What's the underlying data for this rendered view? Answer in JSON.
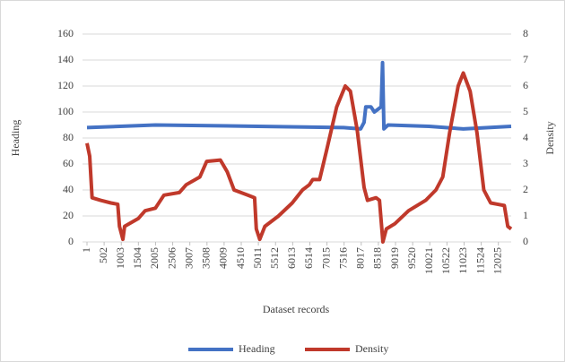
{
  "chart_data": {
    "type": "line",
    "xlabel": "Dataset records",
    "ylabel": "Heading",
    "y2label": "Density",
    "xlim": [
      1,
      12400
    ],
    "xticks": [
      1,
      502,
      1003,
      1504,
      2005,
      2506,
      3007,
      3508,
      4009,
      4510,
      5011,
      5512,
      6013,
      6514,
      7015,
      7516,
      8017,
      8518,
      9019,
      9520,
      10021,
      10522,
      11023,
      11524,
      12025
    ],
    "ylim": [
      0,
      160
    ],
    "yticks": [
      0,
      20,
      40,
      60,
      80,
      100,
      120,
      140,
      160
    ],
    "y2lim": [
      0,
      8
    ],
    "y2ticks": [
      0,
      1,
      2,
      3,
      4,
      5,
      6,
      7,
      8
    ],
    "grid": true,
    "legend": "bottom",
    "series": [
      {
        "name": "Heading",
        "color": "#4472c4",
        "x": [
          1,
          2000,
          5000,
          7500,
          8000,
          8100,
          8150,
          8300,
          8400,
          8500,
          8600,
          8640,
          8680,
          8800,
          10000,
          11000,
          12400
        ],
        "values": [
          88,
          90,
          89,
          88,
          87,
          92,
          104,
          104,
          100,
          102,
          104,
          138,
          87,
          90,
          89,
          87,
          89
        ]
      },
      {
        "name": "Density",
        "color": "#c0392b",
        "axis": "y2",
        "x": [
          1,
          80,
          150,
          400,
          700,
          900,
          950,
          1050,
          1100,
          1500,
          1700,
          2000,
          2250,
          2700,
          2900,
          3300,
          3500,
          3900,
          4100,
          4300,
          4700,
          4900,
          4950,
          5050,
          5200,
          5600,
          6000,
          6300,
          6500,
          6600,
          6800,
          7000,
          7300,
          7550,
          7700,
          7900,
          8100,
          8200,
          8450,
          8550,
          8650,
          8750,
          9000,
          9400,
          9900,
          10200,
          10400,
          10600,
          10850,
          11000,
          11200,
          11400,
          11600,
          11800,
          12000,
          12200,
          12300,
          12400
        ],
        "values": [
          3.8,
          3.3,
          1.7,
          1.6,
          1.5,
          1.45,
          0.6,
          0.1,
          0.6,
          0.9,
          1.2,
          1.3,
          1.8,
          1.9,
          2.2,
          2.5,
          3.1,
          3.15,
          2.7,
          2.0,
          1.8,
          1.7,
          0.5,
          0.1,
          0.6,
          1.0,
          1.5,
          2.0,
          2.2,
          2.4,
          2.4,
          3.5,
          5.2,
          6.0,
          5.8,
          4.3,
          2.1,
          1.6,
          1.7,
          1.6,
          0.0,
          0.5,
          0.7,
          1.2,
          1.6,
          2.0,
          2.5,
          4.2,
          6.0,
          6.5,
          5.8,
          4.2,
          2.0,
          1.5,
          1.45,
          1.4,
          0.6,
          0.5
        ]
      }
    ]
  }
}
